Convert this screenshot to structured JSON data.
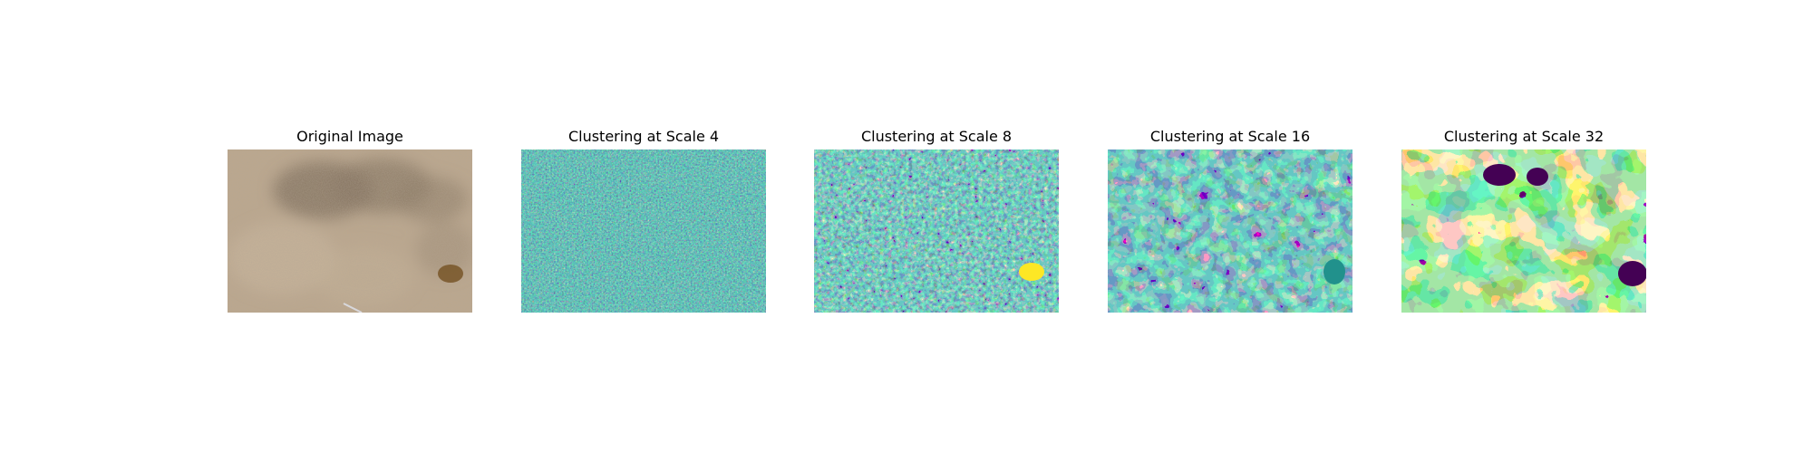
{
  "figure": {
    "panels": [
      {
        "title": "Original Image",
        "kind": "photo",
        "description_icon": "aerial-terrain-photo"
      },
      {
        "title": "Clustering at Scale 4",
        "kind": "cluster-map",
        "scale": 4
      },
      {
        "title": "Clustering at Scale 8",
        "kind": "cluster-map",
        "scale": 8
      },
      {
        "title": "Clustering at Scale 16",
        "kind": "cluster-map",
        "scale": 16
      },
      {
        "title": "Clustering at Scale 32",
        "kind": "cluster-map",
        "scale": 32
      }
    ],
    "cluster_colors": [
      "#440154",
      "#3b528b",
      "#21918c",
      "#5ec962",
      "#fde725"
    ],
    "photo_colors": {
      "base": "#b9a48a",
      "light": "#cdb79c",
      "dark": "#6f5f4d",
      "accent": "#8a6a3c"
    }
  }
}
